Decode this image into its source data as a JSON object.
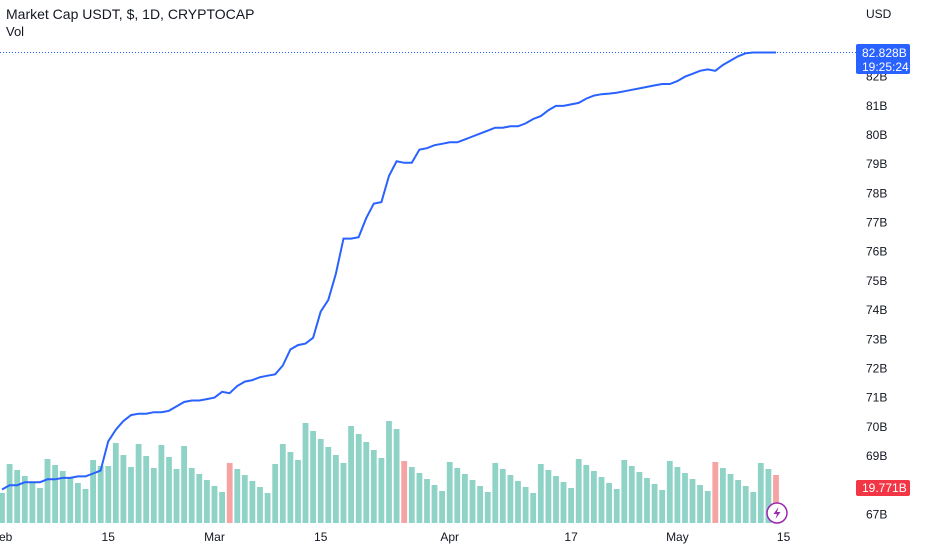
{
  "header": {
    "title": "Market Cap USDT, $, 1D, CRYPTOCAP",
    "volume_label": "Vol"
  },
  "colors": {
    "line": "#2962ff",
    "up_volume": "#8fd3c7",
    "down_volume": "#f5a3a3",
    "price_badge": "#2962ff",
    "volume_badge": "#f23645",
    "flash_icon": "#9c27b0"
  },
  "icons": {
    "flash": "lightning-bolt-icon"
  },
  "chart_data": {
    "type": "line",
    "title": "Market Cap USDT, $, 1D, CRYPTOCAP",
    "currency_label": "USD",
    "ylim": [
      66.6,
      83.6
    ],
    "y_ticks": [
      "67B",
      "68B",
      "69B",
      "70B",
      "71B",
      "72B",
      "73B",
      "74B",
      "75B",
      "76B",
      "77B",
      "78B",
      "79B",
      "80B",
      "81B",
      "82B"
    ],
    "y_tick_values": [
      67,
      68,
      69,
      70,
      71,
      72,
      73,
      74,
      75,
      76,
      77,
      78,
      79,
      80,
      81,
      82
    ],
    "x_ticks": [
      {
        "label": "Feb",
        "day": 0
      },
      {
        "label": "15",
        "day": 14
      },
      {
        "label": "Mar",
        "day": 28
      },
      {
        "label": "15",
        "day": 42
      },
      {
        "label": "Apr",
        "day": 59
      },
      {
        "label": "17",
        "day": 75
      },
      {
        "label": "May",
        "day": 89
      },
      {
        "label": "15",
        "day": 103
      }
    ],
    "last_value_label": "82.828B",
    "countdown_label": "19:25:24",
    "last_value": 82.828,
    "volume_last_label": "19.771B",
    "series": [
      {
        "values": [
          67.85,
          68.0,
          68.0,
          68.1,
          68.1,
          68.1,
          68.2,
          68.2,
          68.25,
          68.25,
          68.3,
          68.3,
          68.4,
          68.5,
          69.5,
          69.9,
          70.2,
          70.4,
          70.45,
          70.45,
          70.5,
          70.5,
          70.55,
          70.7,
          70.85,
          70.9,
          70.9,
          70.95,
          71.0,
          71.2,
          71.15,
          71.4,
          71.55,
          71.6,
          71.7,
          71.75,
          71.8,
          72.1,
          72.65,
          72.8,
          72.85,
          73.05,
          73.95,
          74.35,
          75.25,
          76.45,
          76.45,
          76.5,
          77.15,
          77.65,
          77.7,
          78.6,
          79.1,
          79.05,
          79.05,
          79.5,
          79.55,
          79.65,
          79.7,
          79.75,
          79.75,
          79.85,
          79.95,
          80.05,
          80.15,
          80.25,
          80.25,
          80.3,
          80.3,
          80.4,
          80.55,
          80.65,
          80.85,
          81.0,
          81.0,
          81.05,
          81.1,
          81.25,
          81.35,
          81.4,
          81.42,
          81.45,
          81.5,
          81.55,
          81.6,
          81.65,
          81.7,
          81.75,
          81.75,
          81.85,
          82.0,
          82.1,
          82.2,
          82.25,
          82.2,
          82.4,
          82.55,
          82.7,
          82.8,
          82.83,
          82.83,
          82.83,
          82.828
        ]
      }
    ]
  }
}
